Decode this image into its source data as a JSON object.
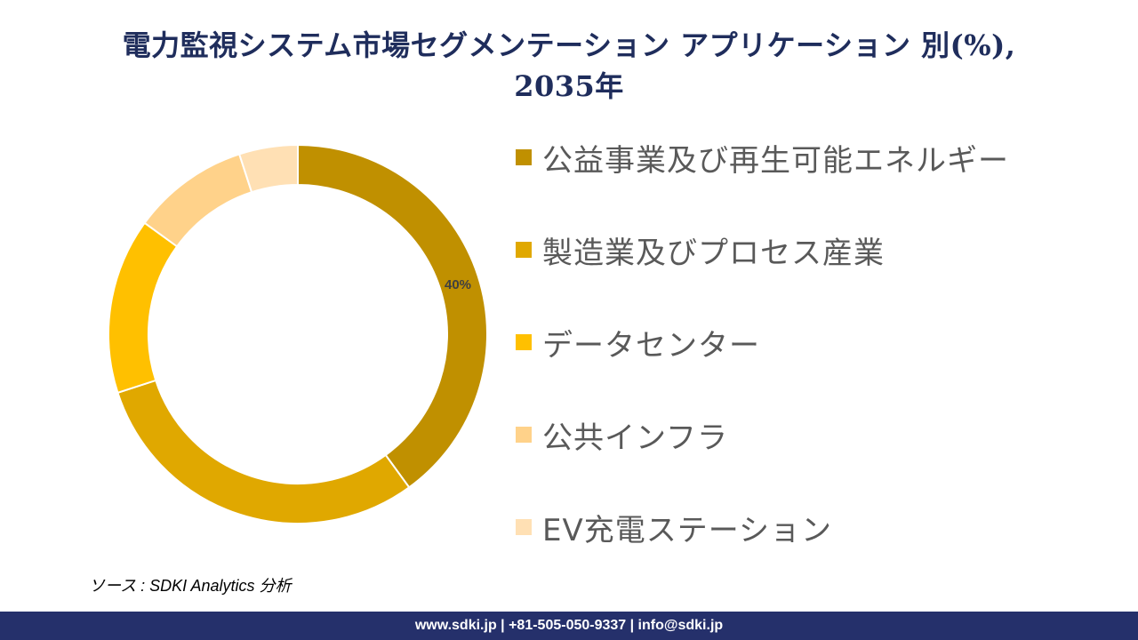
{
  "title": {
    "line1": "電力監視システム市場セグメンテーション アプリケーション 別(%),",
    "line2": "2035年"
  },
  "chart_data": {
    "type": "pie",
    "subtype": "donut",
    "title": "電力監視システム市場セグメンテーション アプリケーション 別(%), 2035年",
    "categories": [
      "公益事業及び再生可能エネルギー",
      "製造業及びプロセス産業",
      "データセンター",
      "公共インフラ",
      "EV充電ステーション"
    ],
    "values": [
      40,
      30,
      15,
      10,
      5
    ],
    "unit": "%",
    "colors": [
      "#c09000",
      "#e0a800",
      "#ffc000",
      "#ffd28a",
      "#ffe0b4"
    ],
    "data_labels": [
      {
        "index": 0,
        "text": "40%"
      }
    ],
    "legend_position": "right",
    "start_angle": 0,
    "direction": "clockwise"
  },
  "legend": {
    "items": [
      {
        "label": "公益事業及び再生可能エネルギー",
        "color": "#c09000"
      },
      {
        "label": "製造業及びプロセス産業",
        "color": "#e0a800"
      },
      {
        "label": "データセンター",
        "color": "#ffc000"
      },
      {
        "label": "公共インフラ",
        "color": "#ffd28a"
      },
      {
        "label": "EV充電ステーション",
        "color": "#ffe0b4"
      }
    ]
  },
  "source": "ソース : SDKI Analytics 分析",
  "footer": "www.sdki.jp | +81-505-050-9337 | info@sdki.jp"
}
